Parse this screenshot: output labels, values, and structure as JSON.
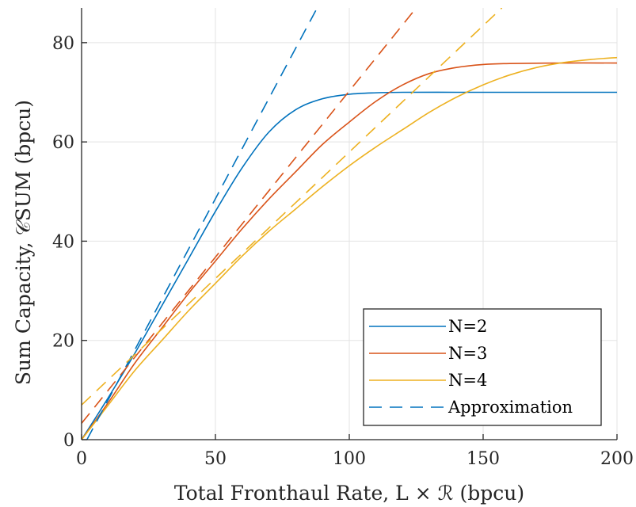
{
  "chart_data": {
    "type": "line",
    "title": "",
    "xlabel": "Total Fronthaul Rate, L × ℛ (bpcu)",
    "ylabel": "Sum Capacity, 𝒞SUM (bpcu)",
    "xlim": [
      0,
      200
    ],
    "ylim": [
      0,
      87
    ],
    "xticks": [
      0,
      50,
      100,
      150,
      200
    ],
    "yticks": [
      0,
      20,
      40,
      60,
      80
    ],
    "grid": true,
    "legend_position": "bottom-right",
    "series": [
      {
        "name": "N=2",
        "style": "solid",
        "color": "#0072BD",
        "x": [
          0,
          10,
          20,
          30,
          40,
          50,
          60,
          70,
          80,
          90,
          100,
          110,
          120,
          140,
          160,
          180,
          200
        ],
        "y": [
          0,
          8.5,
          17.5,
          27,
          36.5,
          46,
          54.8,
          62,
          66.5,
          68.7,
          69.6,
          69.9,
          70,
          70,
          70,
          70,
          70
        ]
      },
      {
        "name": "N=3",
        "style": "solid",
        "color": "#D95319",
        "x": [
          0,
          10,
          20,
          30,
          40,
          50,
          60,
          70,
          80,
          90,
          100,
          110,
          120,
          130,
          140,
          150,
          160,
          180,
          200
        ],
        "y": [
          0,
          7.5,
          15.5,
          22.5,
          29.5,
          36,
          42.5,
          48.5,
          54,
          59.5,
          64,
          68.2,
          71.5,
          73.8,
          75,
          75.6,
          75.8,
          75.9,
          75.9
        ]
      },
      {
        "name": "N=4",
        "style": "solid",
        "color": "#EDB120",
        "x": [
          0,
          10,
          20,
          30,
          40,
          50,
          60,
          70,
          80,
          90,
          100,
          110,
          120,
          130,
          140,
          150,
          160,
          170,
          180,
          190,
          200
        ],
        "y": [
          0,
          7,
          14,
          20,
          26,
          31.5,
          37,
          42,
          46.5,
          51,
          55.2,
          59,
          62.5,
          66,
          69,
          71.5,
          73.5,
          75,
          76,
          76.6,
          77
        ]
      },
      {
        "name": "Approximation",
        "style": "dashed",
        "color": "#0072BD",
        "x": [
          2,
          88
        ],
        "y": [
          0,
          87
        ]
      },
      {
        "name": "",
        "style": "dashed",
        "color": "#D95319",
        "x": [
          0,
          125
        ],
        "y": [
          3.3,
          87
        ]
      },
      {
        "name": "",
        "style": "dashed",
        "color": "#EDB120",
        "x": [
          0,
          157
        ],
        "y": [
          7,
          87
        ]
      }
    ],
    "legend": [
      {
        "label": "N=2",
        "color": "#0072BD",
        "style": "solid"
      },
      {
        "label": "N=3",
        "color": "#D95319",
        "style": "solid"
      },
      {
        "label": "N=4",
        "color": "#EDB120",
        "style": "solid"
      },
      {
        "label": "Approximation",
        "color": "#0072BD",
        "style": "dashed"
      }
    ]
  }
}
